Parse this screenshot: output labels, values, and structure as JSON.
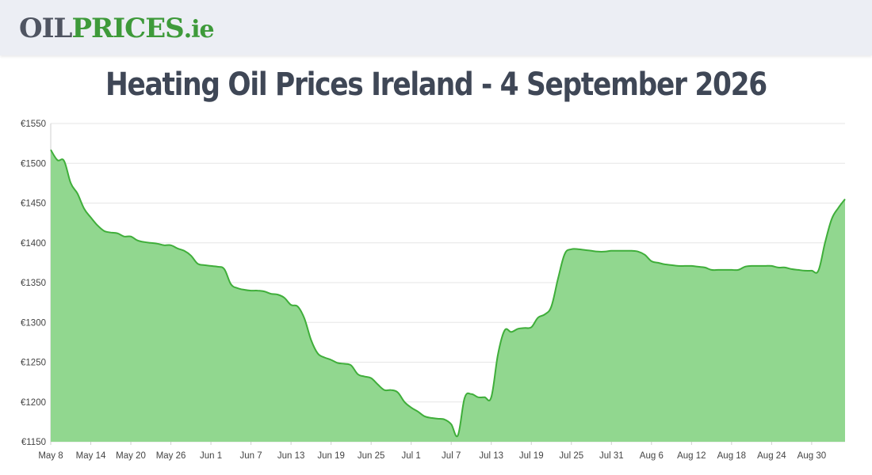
{
  "logo": {
    "oil": "OIL",
    "prices": "PRICES",
    "tld": ".ie"
  },
  "chart_data": {
    "type": "area",
    "title": "Heating Oil Prices Ireland - 4 September 2026",
    "xlabel": "",
    "ylabel": "",
    "color": "#3fae3a",
    "fill_color": "#91d78f",
    "grid": true,
    "legend": "none",
    "ylim": [
      1150,
      1550
    ],
    "y_ticks": [
      "€1550",
      "€1500",
      "€1450",
      "€1400",
      "€1350",
      "€1300",
      "€1250",
      "€1200",
      "€1150"
    ],
    "x_ticks": [
      "May 8",
      "May 14",
      "May 20",
      "May 26",
      "Jun 1",
      "Jun 7",
      "Jun 13",
      "Jun 19",
      "Jun 25",
      "Jul 1",
      "Jul 7",
      "Jul 13",
      "Jul 19",
      "Jul 25",
      "Jul 31",
      "Aug 6",
      "Aug 12",
      "Aug 18",
      "Aug 24",
      "Aug 30"
    ],
    "x_range": [
      "May 8",
      "Sep 4"
    ],
    "series": [
      {
        "x": [
          "May 8",
          "May 9",
          "May 10",
          "May 11",
          "May 12",
          "May 13",
          "May 14",
          "May 15",
          "May 16",
          "May 17",
          "May 18",
          "May 19",
          "May 20",
          "May 21",
          "May 22",
          "May 23",
          "May 24",
          "May 25",
          "May 26",
          "May 27",
          "May 28",
          "May 29",
          "May 30",
          "May 31",
          "Jun 1",
          "Jun 2",
          "Jun 3",
          "Jun 4",
          "Jun 5",
          "Jun 6",
          "Jun 7",
          "Jun 8",
          "Jun 9",
          "Jun 10",
          "Jun 11",
          "Jun 12",
          "Jun 13",
          "Jun 14",
          "Jun 15",
          "Jun 16",
          "Jun 17",
          "Jun 18",
          "Jun 19",
          "Jun 20",
          "Jun 21",
          "Jun 22",
          "Jun 23",
          "Jun 24",
          "Jun 25",
          "Jun 26",
          "Jun 27",
          "Jun 28",
          "Jun 29",
          "Jun 30",
          "Jul 1",
          "Jul 2",
          "Jul 3",
          "Jul 4",
          "Jul 5",
          "Jul 6",
          "Jul 7",
          "Jul 8",
          "Jul 9",
          "Jul 10",
          "Jul 11",
          "Jul 12",
          "Jul 13",
          "Jul 14",
          "Jul 15",
          "Jul 16",
          "Jul 17",
          "Jul 18",
          "Jul 19",
          "Jul 20",
          "Jul 21",
          "Jul 22",
          "Jul 23",
          "Jul 24",
          "Jul 25",
          "Jul 26",
          "Jul 27",
          "Jul 28",
          "Jul 29",
          "Jul 30",
          "Jul 31",
          "Aug 1",
          "Aug 2",
          "Aug 3",
          "Aug 4",
          "Aug 5",
          "Aug 6",
          "Aug 7",
          "Aug 8",
          "Aug 9",
          "Aug 10",
          "Aug 11",
          "Aug 12",
          "Aug 13",
          "Aug 14",
          "Aug 15",
          "Aug 16",
          "Aug 17",
          "Aug 18",
          "Aug 19",
          "Aug 20",
          "Aug 21",
          "Aug 22",
          "Aug 23",
          "Aug 24",
          "Aug 25",
          "Aug 26",
          "Aug 27",
          "Aug 28",
          "Aug 29",
          "Aug 30",
          "Aug 31",
          "Sep 1",
          "Sep 2",
          "Sep 3",
          "Sep 4"
        ],
        "values": [
          1517,
          1504,
          1503,
          1475,
          1462,
          1443,
          1432,
          1422,
          1415,
          1413,
          1412,
          1408,
          1408,
          1403,
          1401,
          1400,
          1399,
          1397,
          1397,
          1393,
          1390,
          1384,
          1374,
          1372,
          1371,
          1370,
          1367,
          1348,
          1343,
          1341,
          1340,
          1340,
          1339,
          1336,
          1335,
          1331,
          1322,
          1320,
          1305,
          1278,
          1261,
          1256,
          1253,
          1249,
          1248,
          1246,
          1235,
          1232,
          1230,
          1222,
          1215,
          1215,
          1212,
          1200,
          1193,
          1188,
          1182,
          1180,
          1179,
          1178,
          1172,
          1158,
          1205,
          1210,
          1206,
          1206,
          1206,
          1260,
          1290,
          1288,
          1292,
          1293,
          1294,
          1306,
          1310,
          1320,
          1355,
          1386,
          1392,
          1392,
          1391,
          1390,
          1389,
          1389,
          1390,
          1390,
          1390,
          1390,
          1389,
          1385,
          1377,
          1375,
          1373,
          1372,
          1371,
          1371,
          1371,
          1370,
          1369,
          1366,
          1366,
          1366,
          1366,
          1366,
          1370,
          1371,
          1371,
          1371,
          1371,
          1369,
          1369,
          1367,
          1366,
          1365,
          1365,
          1365,
          1400,
          1430,
          1444,
          1455
        ]
      }
    ]
  }
}
